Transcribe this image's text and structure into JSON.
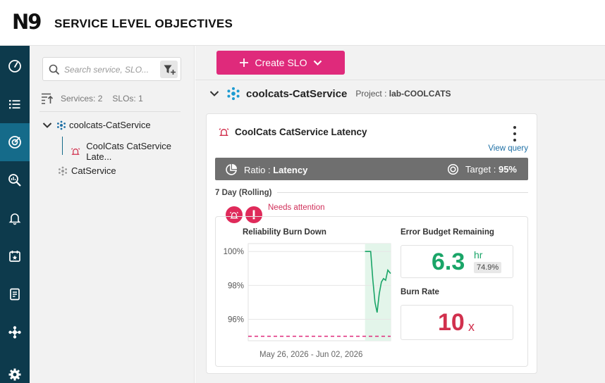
{
  "header": {
    "logo": "N9",
    "title": "SERVICE LEVEL OBJECTIVES"
  },
  "nav": {
    "items": [
      {
        "name": "dashboard-nav-icon"
      },
      {
        "name": "list-nav-icon"
      },
      {
        "name": "slo-nav-icon",
        "active": true
      },
      {
        "name": "analytics-nav-icon"
      },
      {
        "name": "alerts-nav-icon"
      },
      {
        "name": "calendar-nav-icon"
      },
      {
        "name": "reports-nav-icon"
      },
      {
        "name": "integrations-nav-icon"
      },
      {
        "name": "settings-nav-icon"
      }
    ]
  },
  "sidebar": {
    "search_placeholder": "Search service, SLO...",
    "services_label": "Services:",
    "services_count": "2",
    "slos_label": "SLOs:",
    "slos_count": "1",
    "tree": [
      {
        "label": "coolcats-CatService",
        "expanded": true,
        "children": [
          {
            "label": "CoolCats CatService Late..."
          }
        ]
      },
      {
        "label": "CatService"
      }
    ]
  },
  "main": {
    "create_button": "Create SLO",
    "service": {
      "name": "coolcats-CatService",
      "project_label": "Project :",
      "project": "lab-COOLCATS"
    },
    "slo": {
      "title": "CoolCats CatService Latency",
      "view_query": "View query",
      "ratio_label": "Ratio :",
      "ratio_value": "Latency",
      "target_label": "Target :",
      "target_value": "95%",
      "window": "7 Day (Rolling)",
      "status": "Needs attention",
      "burn_down_title": "Reliability Burn Down",
      "date_range": "May 26, 2026 - Jun 02, 2026",
      "error_budget_title": "Error Budget Remaining",
      "error_budget_value": "6.3",
      "error_budget_unit": "hr",
      "error_budget_percent": "74.9%",
      "burn_rate_title": "Burn Rate",
      "burn_rate_value": "10",
      "burn_rate_unit": "x"
    }
  },
  "colors": {
    "accent": "#df2a7b",
    "nav": "#0d3a4c",
    "nav_active": "#156b8a",
    "good": "#1aa568",
    "bad": "#d1304d"
  },
  "chart_data": {
    "type": "line",
    "title": "Reliability Burn Down",
    "ylabel": "",
    "xlabel": "May 26, 2026 - Jun 02, 2026",
    "y_ticks": [
      "100%",
      "98%",
      "96%"
    ],
    "ylim": [
      94.9,
      100.3
    ],
    "target": 95,
    "series": [
      {
        "x": [
          0,
          0.82,
          0.86,
          0.875,
          0.89,
          0.905,
          0.92,
          0.935,
          0.95,
          0.965,
          0.98,
          1.0
        ],
        "values": [
          null,
          100,
          100,
          98.3,
          97.0,
          96.4,
          97.5,
          98.2,
          98.4,
          98.3,
          98.9,
          98.7
        ]
      }
    ],
    "shaded_region_x": [
      0.82,
      1.0
    ]
  }
}
